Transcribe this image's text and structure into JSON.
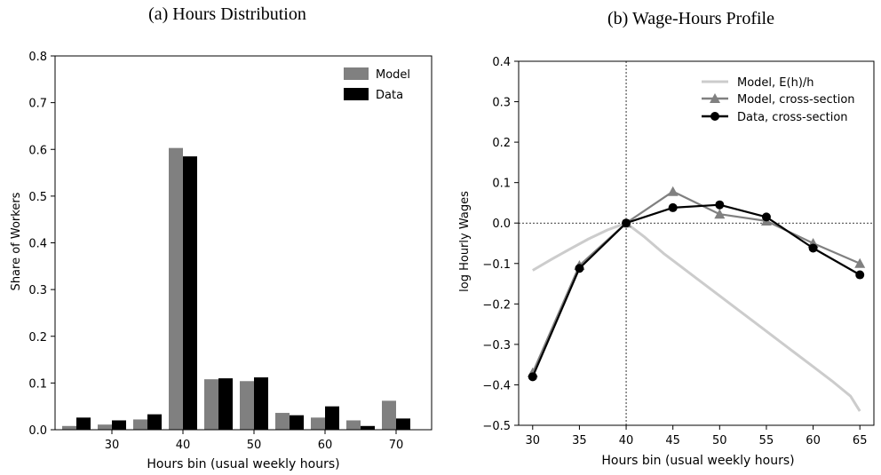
{
  "chart_data": [
    {
      "type": "bar",
      "title": "(a) Hours Distribution",
      "xlabel": "Hours bin (usual weekly hours)",
      "ylabel": "Share of Workers",
      "x": [
        25,
        30,
        35,
        40,
        45,
        50,
        55,
        60,
        65,
        70
      ],
      "xticks": [
        "30",
        "40",
        "50",
        "60",
        "70"
      ],
      "xtick_values": [
        30,
        40,
        50,
        60,
        70
      ],
      "xlim": [
        22,
        75
      ],
      "ylim": [
        0,
        0.8
      ],
      "yticks": [
        "0.0",
        "0.1",
        "0.2",
        "0.3",
        "0.4",
        "0.5",
        "0.6",
        "0.7",
        "0.8"
      ],
      "ytick_values": [
        0,
        0.1,
        0.2,
        0.3,
        0.4,
        0.5,
        0.6,
        0.7,
        0.8
      ],
      "legend_position": "top-right",
      "series": [
        {
          "name": "Model",
          "color": "#808080",
          "values": [
            0.008,
            0.011,
            0.022,
            0.603,
            0.108,
            0.104,
            0.036,
            0.026,
            0.02,
            0.062
          ]
        },
        {
          "name": "Data",
          "color": "#000000",
          "values": [
            0.026,
            0.02,
            0.033,
            0.585,
            0.11,
            0.112,
            0.031,
            0.05,
            0.008,
            0.024
          ]
        }
      ]
    },
    {
      "type": "line",
      "title": "(b) Wage-Hours Profile",
      "xlabel": "Hours bin (usual weekly hours)",
      "ylabel": "log Hourly Wages",
      "xlim": [
        28.5,
        66.5
      ],
      "xticks": [
        "30",
        "35",
        "40",
        "45",
        "50",
        "55",
        "60",
        "65"
      ],
      "xtick_values": [
        30,
        35,
        40,
        45,
        50,
        55,
        60,
        65
      ],
      "ylim": [
        -0.5,
        0.4
      ],
      "yticks": [
        "−0.5",
        "−0.4",
        "−0.3",
        "−0.2",
        "−0.1",
        "0.0",
        "0.1",
        "0.2",
        "0.3",
        "0.4"
      ],
      "ytick_values": [
        -0.5,
        -0.4,
        -0.3,
        -0.2,
        -0.1,
        0,
        0.1,
        0.2,
        0.3,
        0.4
      ],
      "reference_lines": {
        "vertical_x": 40,
        "horizontal_y": 0,
        "style": "dotted"
      },
      "legend_position": "top-right",
      "series": [
        {
          "name": "Model, E(h)/h",
          "color": "#cccccc",
          "marker": "none",
          "line_width": 3,
          "x": [
            30,
            32,
            34,
            36,
            38,
            40,
            42,
            44,
            46,
            48,
            50,
            52,
            54,
            56,
            58,
            60,
            62,
            64,
            65
          ],
          "values": [
            -0.117,
            -0.09,
            -0.064,
            -0.039,
            -0.017,
            0.0,
            -0.035,
            -0.075,
            -0.11,
            -0.145,
            -0.18,
            -0.215,
            -0.25,
            -0.285,
            -0.32,
            -0.355,
            -0.39,
            -0.428,
            -0.465
          ]
        },
        {
          "name": "Model, cross-section",
          "color": "#808080",
          "marker": "triangle",
          "x": [
            30,
            35,
            40,
            45,
            50,
            55,
            60,
            65
          ],
          "values": [
            -0.37,
            -0.105,
            0.0,
            0.078,
            0.022,
            0.005,
            -0.05,
            -0.1
          ]
        },
        {
          "name": "Data, cross-section",
          "color": "#000000",
          "marker": "circle",
          "x": [
            30,
            35,
            40,
            45,
            50,
            55,
            60,
            65
          ],
          "values": [
            -0.38,
            -0.112,
            0.0,
            0.038,
            0.045,
            0.015,
            -0.062,
            -0.128
          ]
        }
      ]
    }
  ]
}
